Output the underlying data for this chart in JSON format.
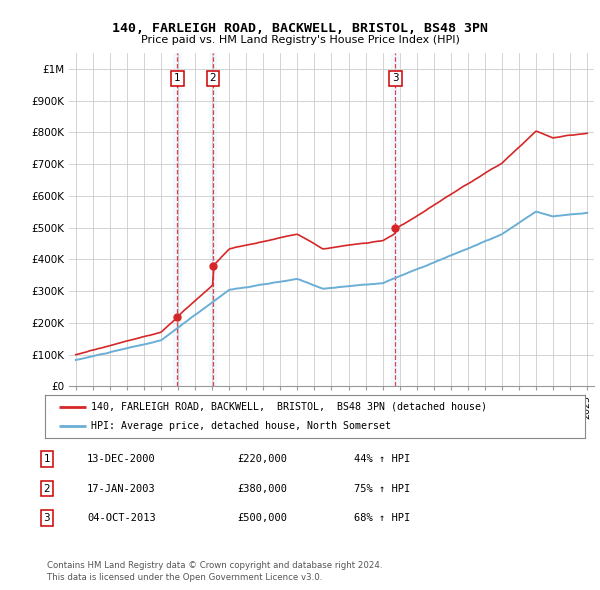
{
  "title1": "140, FARLEIGH ROAD, BACKWELL, BRISTOL, BS48 3PN",
  "title2": "Price paid vs. HM Land Registry's House Price Index (HPI)",
  "ylabel_ticks": [
    "£0",
    "£100K",
    "£200K",
    "£300K",
    "£400K",
    "£500K",
    "£600K",
    "£700K",
    "£800K",
    "£900K",
    "£1M"
  ],
  "ytick_vals": [
    0,
    100000,
    200000,
    300000,
    400000,
    500000,
    600000,
    700000,
    800000,
    900000,
    1000000
  ],
  "ylim": [
    0,
    1050000
  ],
  "xlim_start": 1994.6,
  "xlim_end": 2025.4,
  "transaction_prices": [
    220000,
    380000,
    500000
  ],
  "transaction_labels": [
    "1",
    "2",
    "3"
  ],
  "transaction_pct": [
    "44% ↑ HPI",
    "75% ↑ HPI",
    "68% ↑ HPI"
  ],
  "transaction_date_str": [
    "13-DEC-2000",
    "17-JAN-2003",
    "04-OCT-2013"
  ],
  "transaction_years": [
    2000.958,
    2003.042,
    2013.75
  ],
  "legend_line1": "140, FARLEIGH ROAD, BACKWELL,  BRISTOL,  BS48 3PN (detached house)",
  "legend_line2": "HPI: Average price, detached house, North Somerset",
  "footer1": "Contains HM Land Registry data © Crown copyright and database right 2024.",
  "footer2": "This data is licensed under the Open Government Licence v3.0.",
  "hpi_color": "#6baed6",
  "price_color": "#d62728",
  "vline_color": "#d62728",
  "shade_color": "#ddeeff",
  "background_color": "#ffffff",
  "grid_color": "#cccccc"
}
